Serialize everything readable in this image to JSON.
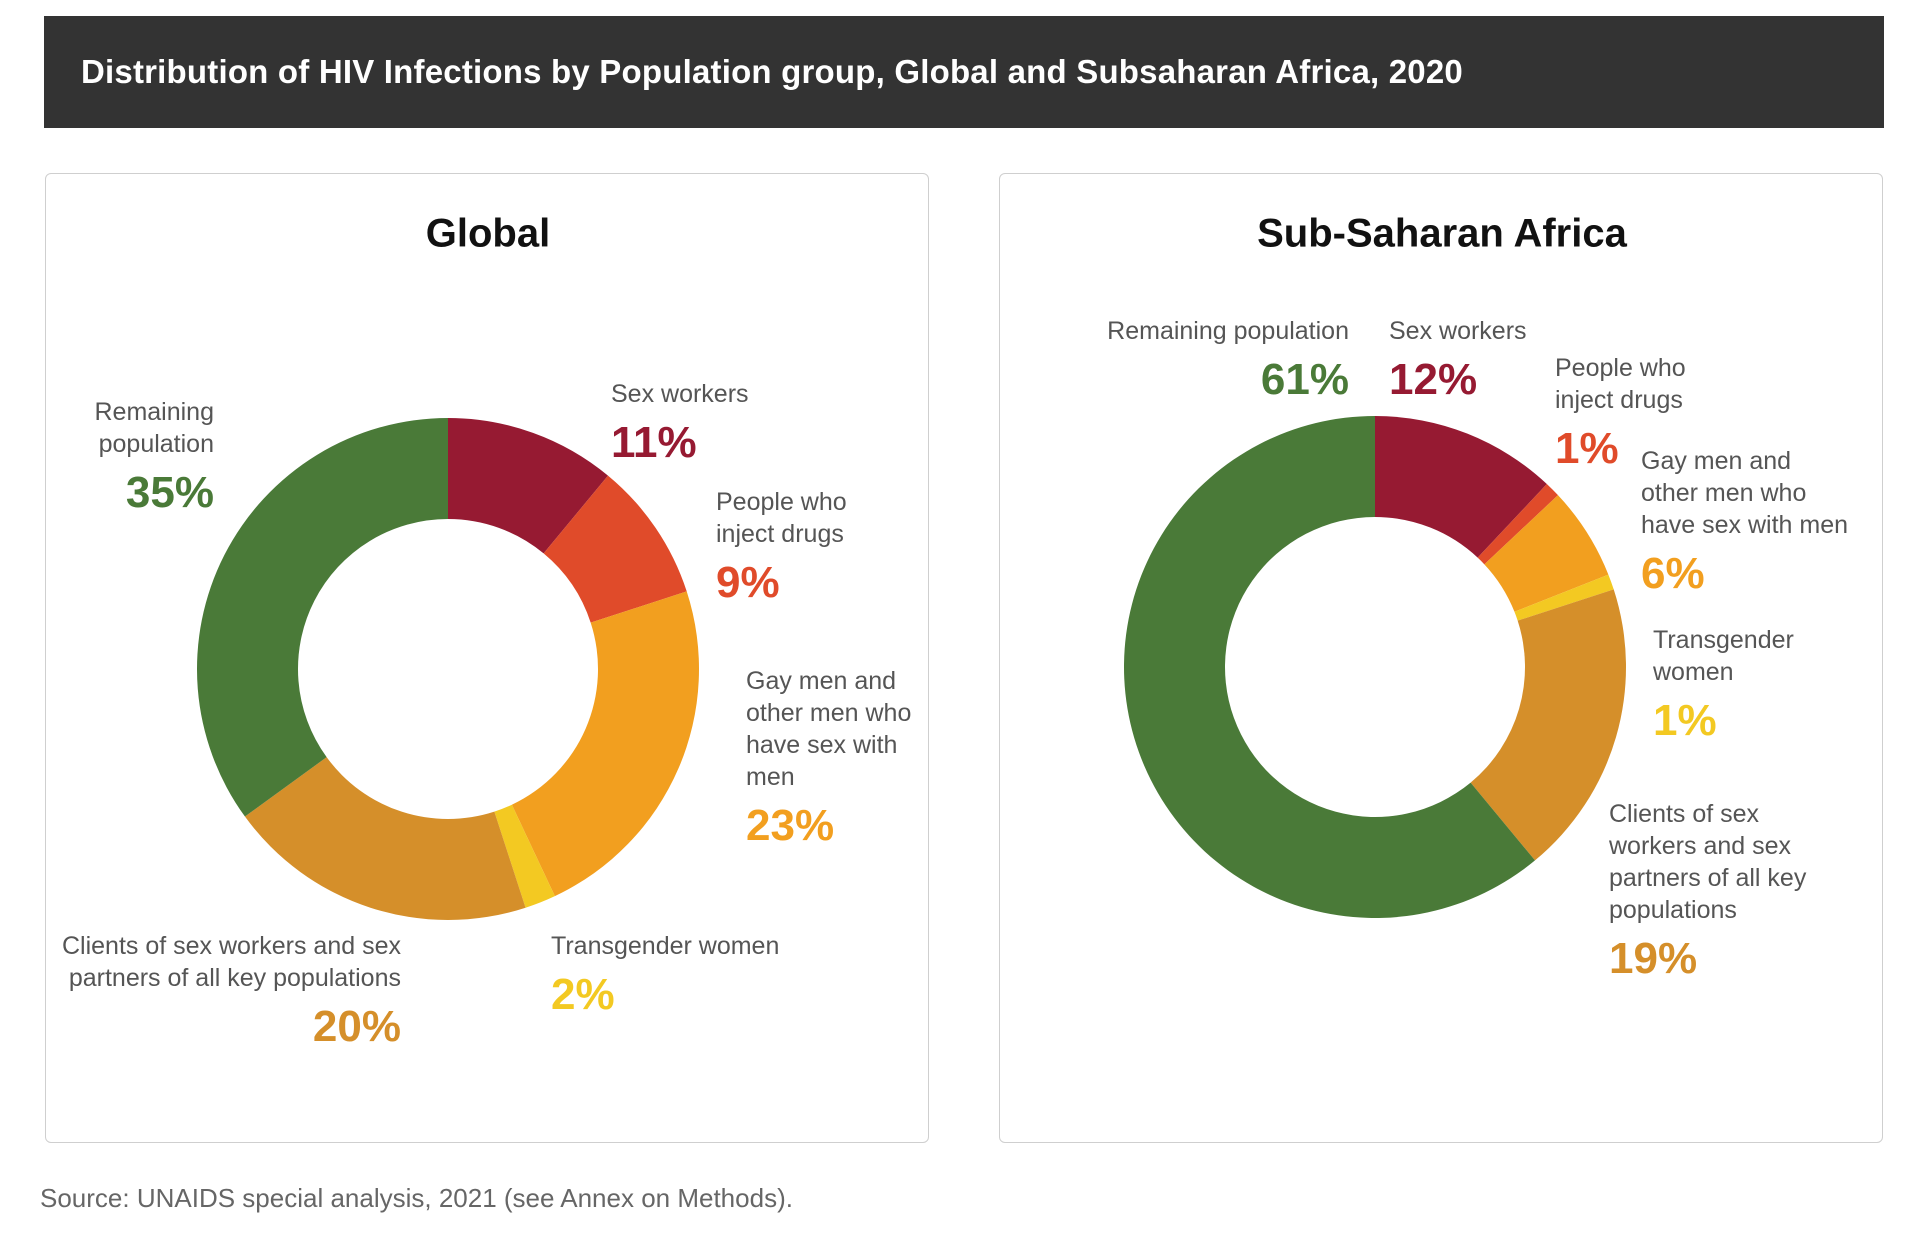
{
  "header": {
    "title": "Distribution of HIV Infections by Population group, Global and Subsaharan Africa, 2020"
  },
  "source": "Source: UNAIDS special analysis, 2021 (see Annex on Methods).",
  "chart_data": [
    {
      "type": "pie",
      "variant": "donut",
      "title": "Global",
      "unit": "%",
      "categories": [
        "Sex workers",
        "People who inject drugs",
        "Gay men and other men who have sex with men",
        "Transgender women",
        "Clients of sex workers and sex partners of all key populations",
        "Remaining population"
      ],
      "values": [
        11,
        9,
        23,
        2,
        20,
        35
      ],
      "value_labels": [
        "11%",
        "9%",
        "23%",
        "2%",
        "20%",
        "35%"
      ],
      "label_lines": [
        [
          "Sex workers"
        ],
        [
          "People who",
          "inject drugs"
        ],
        [
          "Gay men and",
          "other men who",
          "have sex with",
          "men"
        ],
        [
          "Transgender women"
        ],
        [
          "Clients of sex workers and sex",
          "partners of all key populations"
        ],
        [
          "Remaining",
          "population"
        ]
      ],
      "colors": [
        "#961a32",
        "#e04b2a",
        "#f29f1f",
        "#f3c922",
        "#d58f2a",
        "#4a7a38"
      ],
      "legend": "none"
    },
    {
      "type": "pie",
      "variant": "donut",
      "title": "Sub-Saharan Africa",
      "unit": "%",
      "categories": [
        "Sex workers",
        "People who inject drugs",
        "Gay men and other men who have sex with men",
        "Transgender women",
        "Clients of sex workers and sex partners of all key populations",
        "Remaining population"
      ],
      "values": [
        12,
        1,
        6,
        1,
        19,
        61
      ],
      "value_labels": [
        "12%",
        "1%",
        "6%",
        "1%",
        "19%",
        "61%"
      ],
      "label_lines": [
        [
          "Sex workers"
        ],
        [
          "People who",
          "inject drugs"
        ],
        [
          "Gay men and",
          "other men who",
          "have sex with men"
        ],
        [
          "Transgender",
          "women"
        ],
        [
          "Clients of sex",
          "workers and sex",
          "partners of all key",
          "populations"
        ],
        [
          "Remaining population"
        ]
      ],
      "colors": [
        "#961a32",
        "#e04b2a",
        "#f29f1f",
        "#f3c922",
        "#d58f2a",
        "#4a7a38"
      ],
      "legend": "none"
    }
  ]
}
